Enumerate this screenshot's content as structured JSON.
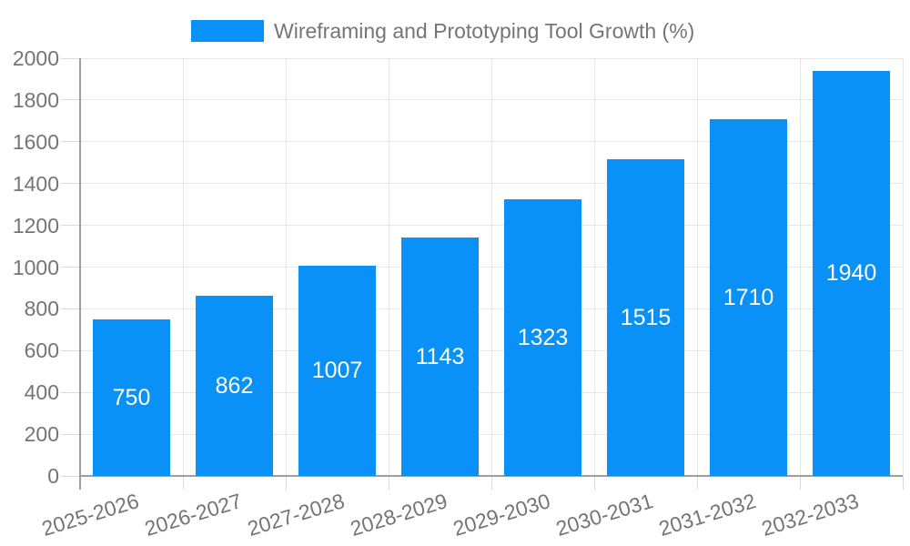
{
  "legend": {
    "label": "Wireframing and Prototyping Tool Growth (%)"
  },
  "colors": {
    "bar": "#0991f8",
    "bar_value_label": "#ffffff",
    "axis_text": "#757575",
    "gridline": "#e6e6e6",
    "tick": "#d9d9d9",
    "axis_line": "#9e9e9e",
    "background": "#ffffff"
  },
  "chart_data": {
    "type": "bar",
    "title": "Wireframing and Prototyping Tool Growth (%)",
    "categories": [
      "2025-2026",
      "2026-2027",
      "2027-2028",
      "2028-2029",
      "2029-2030",
      "2030-2031",
      "2031-2032",
      "2032-2033"
    ],
    "values": [
      750,
      862,
      1007,
      1143,
      1323,
      1515,
      1710,
      1940
    ],
    "series": [
      {
        "name": "Wireframing and Prototyping Tool Growth (%)",
        "values": [
          750,
          862,
          1007,
          1143,
          1323,
          1515,
          1710,
          1940
        ]
      }
    ],
    "xlabel": "",
    "ylabel": "",
    "ylim": [
      0,
      2000
    ],
    "ytick_step": 200,
    "yticks": [
      0,
      200,
      400,
      600,
      800,
      1000,
      1200,
      1400,
      1600,
      1800,
      2000
    ],
    "grid": true,
    "legend_position": "top-center",
    "bar_value_labels": "inside-middle",
    "x_label_rotation_deg": -17
  }
}
